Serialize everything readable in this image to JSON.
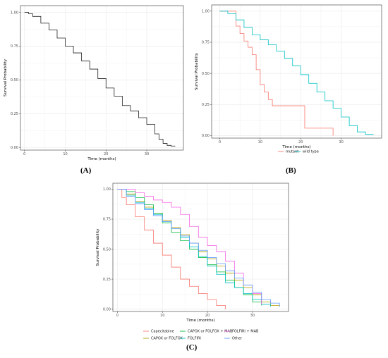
{
  "chart_data": [
    {
      "panel": "(A)",
      "type": "line",
      "step": true,
      "xlabel": "Time (months)",
      "ylabel": "Survival Probability",
      "xlim": [
        -1,
        39
      ],
      "ylim": [
        -0.02,
        1.05
      ],
      "xticks": [
        0,
        10,
        20,
        30
      ],
      "yticks": [
        0.0,
        0.25,
        0.5,
        0.75,
        1.0
      ],
      "ytick_labels": [
        "0.00",
        "0.25",
        "0.50",
        "0.75",
        "1.00"
      ],
      "grid": true,
      "series": [
        {
          "name": "",
          "color": "#222222",
          "x": [
            0,
            1,
            2,
            4,
            6,
            8,
            10,
            12,
            14,
            16,
            18,
            20,
            22,
            24,
            26,
            28,
            30,
            32,
            33,
            34,
            35,
            36,
            37
          ],
          "y": [
            1.0,
            0.99,
            0.97,
            0.92,
            0.87,
            0.81,
            0.75,
            0.7,
            0.64,
            0.58,
            0.51,
            0.44,
            0.38,
            0.31,
            0.27,
            0.22,
            0.17,
            0.1,
            0.06,
            0.03,
            0.015,
            0.01,
            0.01
          ]
        }
      ]
    },
    {
      "panel": "(B)",
      "type": "line",
      "step": true,
      "xlabel": "Time (months)",
      "ylabel": "Survival Probability",
      "xlim": [
        -2,
        40
      ],
      "ylim": [
        -0.02,
        1.05
      ],
      "xticks": [
        0,
        10,
        20,
        30
      ],
      "yticks": [
        0.0,
        0.25,
        0.5,
        0.75,
        1.0
      ],
      "ytick_labels": [
        "0.00",
        "0.25",
        "0.50",
        "0.75",
        "1.00"
      ],
      "grid": true,
      "legend_position": "bottom",
      "series": [
        {
          "name": "mutant",
          "color": "#f8766d",
          "x": [
            0,
            3,
            4,
            5,
            6,
            7,
            8,
            9,
            10,
            11,
            12,
            13,
            20,
            21,
            27,
            28
          ],
          "y": [
            1.0,
            1.0,
            0.88,
            0.82,
            0.76,
            0.71,
            0.65,
            0.53,
            0.41,
            0.35,
            0.29,
            0.24,
            0.24,
            0.06,
            0.06,
            0.0
          ]
        },
        {
          "name": "wild type",
          "color": "#00bfc4",
          "x": [
            0,
            2,
            4,
            6,
            8,
            10,
            12,
            14,
            16,
            18,
            20,
            22,
            24,
            26,
            28,
            30,
            32,
            34,
            36,
            38
          ],
          "y": [
            1.0,
            0.98,
            0.93,
            0.87,
            0.81,
            0.77,
            0.73,
            0.68,
            0.62,
            0.56,
            0.49,
            0.42,
            0.35,
            0.28,
            0.22,
            0.15,
            0.08,
            0.03,
            0.01,
            0.01
          ]
        }
      ]
    },
    {
      "panel": "(C)",
      "type": "line",
      "step": true,
      "xlabel": "Time (months)",
      "ylabel": "Survival Probability",
      "xlim": [
        -1,
        38
      ],
      "ylim": [
        -0.02,
        1.05
      ],
      "xticks": [
        0,
        10,
        20,
        30
      ],
      "yticks": [
        0.0,
        0.25,
        0.5,
        0.75,
        1.0
      ],
      "ytick_labels": [
        "0.00",
        "0.25",
        "0.50",
        "0.75",
        "1.00"
      ],
      "grid": true,
      "legend_position": "bottom",
      "series": [
        {
          "name": "Capecitabine",
          "color": "#f8766d",
          "x": [
            0,
            1,
            2,
            4,
            6,
            8,
            10,
            12,
            14,
            16,
            18,
            20,
            22,
            24
          ],
          "y": [
            1.0,
            0.93,
            0.87,
            0.77,
            0.66,
            0.55,
            0.45,
            0.35,
            0.25,
            0.19,
            0.13,
            0.08,
            0.03,
            0.0
          ]
        },
        {
          "name": "CAPOX or FOLFOX",
          "color": "#b79f00",
          "x": [
            0,
            2,
            4,
            6,
            8,
            10,
            12,
            14,
            16,
            18,
            20,
            22,
            24,
            26,
            28,
            30,
            32,
            34,
            36
          ],
          "y": [
            1.0,
            0.96,
            0.9,
            0.85,
            0.8,
            0.74,
            0.68,
            0.62,
            0.55,
            0.48,
            0.42,
            0.36,
            0.3,
            0.24,
            0.18,
            0.12,
            0.06,
            0.03,
            0.02
          ]
        },
        {
          "name": "CAPOX or FOLFOX + MAB",
          "color": "#00ba38",
          "x": [
            0,
            2,
            4,
            6,
            8,
            10,
            12,
            14,
            16,
            18,
            20,
            22,
            24,
            26,
            28,
            30,
            32
          ],
          "y": [
            1.0,
            0.98,
            0.93,
            0.87,
            0.8,
            0.72,
            0.64,
            0.57,
            0.5,
            0.43,
            0.37,
            0.31,
            0.24,
            0.18,
            0.12,
            0.06,
            0.03
          ]
        },
        {
          "name": "FOLFIRI",
          "color": "#00bfc4",
          "x": [
            0,
            2,
            4,
            6,
            8,
            10,
            12,
            14,
            16,
            18,
            20,
            22,
            24,
            26,
            28,
            30,
            32,
            34
          ],
          "y": [
            1.0,
            0.95,
            0.89,
            0.84,
            0.79,
            0.73,
            0.67,
            0.6,
            0.52,
            0.44,
            0.36,
            0.29,
            0.22,
            0.18,
            0.13,
            0.08,
            0.04,
            0.02
          ]
        },
        {
          "name": "FOLFIRI + MAB",
          "color": "#f564e3",
          "x": [
            0,
            2,
            4,
            6,
            8,
            10,
            12,
            14,
            16,
            18,
            20,
            22,
            24,
            26,
            28,
            30,
            32
          ],
          "y": [
            1.0,
            1.0,
            0.97,
            0.94,
            0.91,
            0.89,
            0.85,
            0.79,
            0.69,
            0.6,
            0.53,
            0.48,
            0.4,
            0.3,
            0.2,
            0.13,
            0.04
          ]
        },
        {
          "name": "Other",
          "color": "#619cff",
          "x": [
            0,
            2,
            4,
            6,
            8,
            10,
            12,
            14,
            16,
            18,
            20,
            22,
            24,
            26,
            28,
            30,
            32,
            34,
            36
          ],
          "y": [
            1.0,
            0.94,
            0.88,
            0.83,
            0.78,
            0.73,
            0.67,
            0.61,
            0.55,
            0.49,
            0.43,
            0.38,
            0.32,
            0.26,
            0.2,
            0.14,
            0.08,
            0.05,
            0.02
          ]
        }
      ]
    }
  ]
}
